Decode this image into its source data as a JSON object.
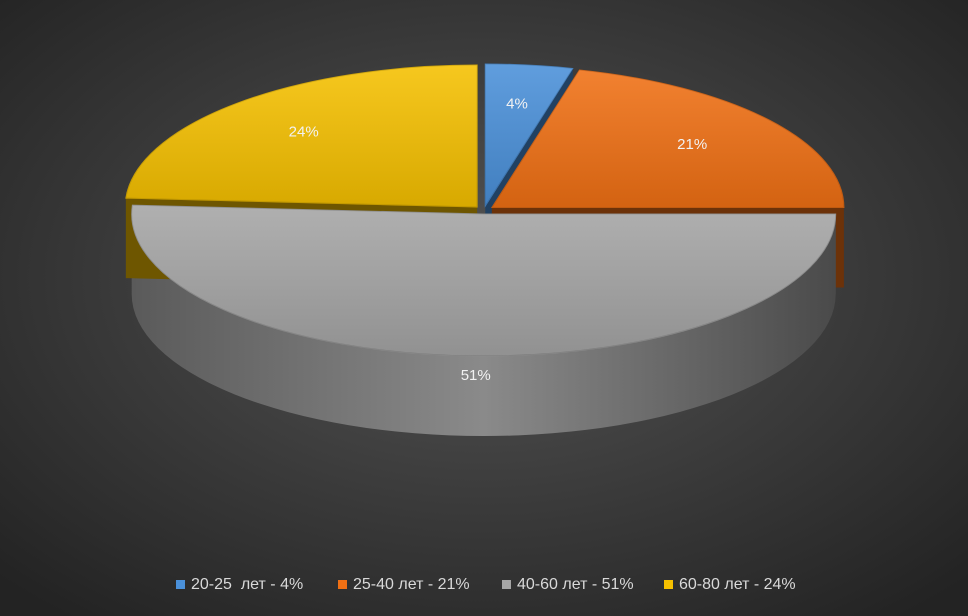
{
  "chart_data": {
    "type": "pie",
    "categories": [
      "20-25  лет - 4%",
      "25-40 лет - 21%",
      "40-60 лет - 51%",
      "60-80 лет - 24%"
    ],
    "values": [
      4,
      21,
      51,
      24
    ],
    "value_labels": [
      "4%",
      "21%",
      "51%",
      "24%"
    ],
    "colors": [
      "#4a90d9",
      "#f07014",
      "#a5a5a5",
      "#f5c000"
    ],
    "legend": "bottom"
  }
}
